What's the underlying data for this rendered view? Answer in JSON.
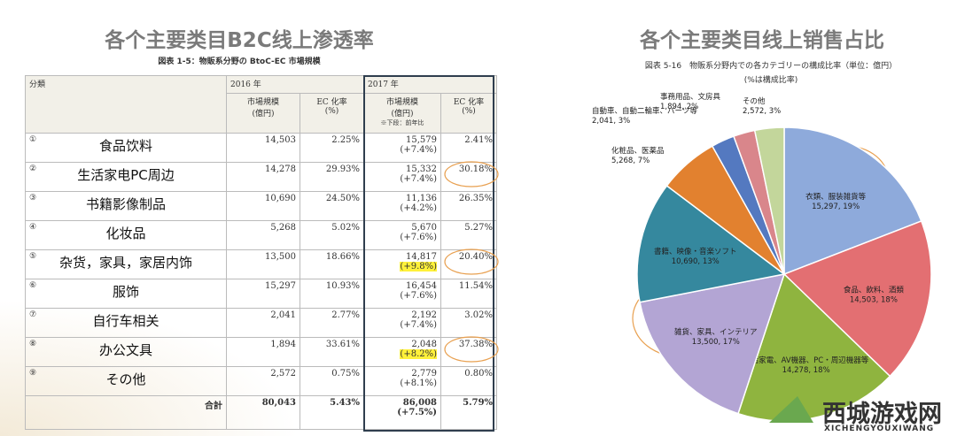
{
  "left": {
    "title": "各个主要类目B2C线上渗透率",
    "subtitle": "図表 1-5：物販系分野の BtoC-EC 市場規模",
    "table": {
      "header": [
        "分類",
        "2016 年",
        "2017 年"
      ],
      "subheader": [
        "市場規模\n(億円)",
        "EC 化率\n(%)",
        "市場規模\n(億円)",
        "EC 化率\n(%)"
      ],
      "note": "※下段：前年比",
      "rows": [
        [
          "①",
          "食品饮料",
          "14,503",
          "2.25%",
          "15,579",
          "(+7.4%)",
          "2.41%"
        ],
        [
          "②",
          "生活家电PC周边",
          "14,278",
          "29.93%",
          "15,332",
          "(+7.4%)",
          "30.18%"
        ],
        [
          "③",
          "书籍影像制品",
          "10,690",
          "24.50%",
          "11,136",
          "(+4.2%)",
          "26.35%"
        ],
        [
          "④",
          "化妆品",
          "5,268",
          "5.02%",
          "5,670",
          "(+7.6%)",
          "5.27%"
        ],
        [
          "⑤",
          "杂货，家具，家居内饰",
          "13,500",
          "18.66%",
          "14,817",
          "(+9.8%)",
          "20.40%"
        ],
        [
          "⑥",
          "服饰",
          "15,297",
          "10.93%",
          "16,454",
          "(+7.6%)",
          "11.54%"
        ],
        [
          "⑦",
          "自行车相关",
          "2,041",
          "2.77%",
          "2,192",
          "(+7.4%)",
          "3.02%"
        ],
        [
          "⑧",
          "办公文具",
          "1,894",
          "33.61%",
          "2,048",
          "(+8.2%)",
          "37.38%"
        ],
        [
          "⑨",
          "その他",
          "2,572",
          "0.75%",
          "2,779",
          "(+8.1%)",
          "0.80%"
        ]
      ],
      "total": [
        "合計",
        "80,043",
        "5.43%",
        "86,008",
        "(+7.5%)",
        "5.79%"
      ]
    }
  },
  "chart_data": {
    "type": "pie",
    "title": "各个主要类目线上销售占比",
    "subtitle": "図表 5-16　物販系分野内での各カテゴリーの構成比率（単位：億円）",
    "note": "(%は構成比率)",
    "categories": [
      "衣類、服装雑貨等",
      "食品、飲料、酒類",
      "生活家電、AV機器、PC・周辺機器等",
      "雑貨、家具、インテリア",
      "書籍、映像・音楽ソフト",
      "化粧品、医薬品",
      "自動車、自動二輪車、パーツ等",
      "事務用品、文房具",
      "その他"
    ],
    "values": [
      15297,
      14503,
      14278,
      13500,
      10690,
      5268,
      2041,
      1894,
      2572
    ],
    "value_labels": [
      "15,297, 19%",
      "14,503, 18%",
      "14,278, 18%",
      "13,500, 17%",
      "10,690, 13%",
      "5,268, 7%",
      "2,041, 3%",
      "1,894, 2%",
      "2,572, 3%"
    ],
    "colors": [
      "#8eaadb",
      "#e36f72",
      "#8fb43f",
      "#b3a5d4",
      "#35889e",
      "#e2812f",
      "#5479c0",
      "#d9868b",
      "#c3d69b"
    ]
  },
  "watermark": {
    "name": "西城游戏网",
    "url": "XICHENGYOUXIWANG"
  }
}
